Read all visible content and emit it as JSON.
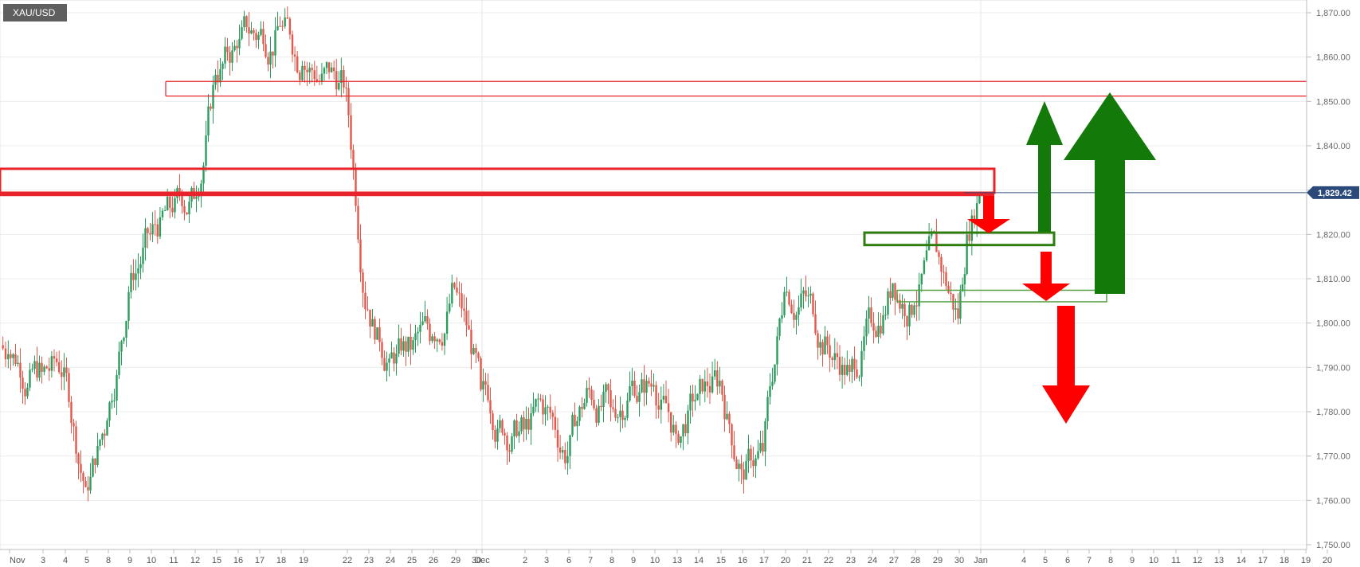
{
  "symbol": "XAU/USD",
  "chart_data": {
    "type": "candlestick",
    "instrument": "XAU/USD",
    "current_price": 1829.42,
    "current_price_label": "1,829.42",
    "y_axis": {
      "min": 1750,
      "max": 1870,
      "ticks": [
        1750,
        1760,
        1770,
        1780,
        1790,
        1800,
        1810,
        1820,
        1830,
        1840,
        1850,
        1860,
        1870
      ],
      "tick_labels": [
        "1,750.00",
        "1,760.00",
        "1,770.00",
        "1,780.00",
        "1,790.00",
        "1,800.00",
        "1,810.00",
        "1,820.00",
        "1,830.00",
        "1,840.00",
        "1,850.00",
        "1,860.00",
        "1,870.00"
      ]
    },
    "x_axis": {
      "tick_labels": [
        "Nov",
        "3",
        "4",
        "5",
        "8",
        "9",
        "10",
        "11",
        "12",
        "15",
        "16",
        "17",
        "18",
        "19",
        "22",
        "23",
        "24",
        "25",
        "26",
        "29",
        "30",
        "Dec",
        "2",
        "3",
        "6",
        "7",
        "8",
        "9",
        "10",
        "13",
        "14",
        "15",
        "16",
        "17",
        "20",
        "21",
        "22",
        "23",
        "24",
        "27",
        "28",
        "29",
        "30",
        "Jan",
        "4",
        "5",
        "6",
        "7",
        "8",
        "9",
        "10",
        "11",
        "12",
        "13",
        "14",
        "17",
        "18",
        "19",
        "20"
      ]
    },
    "day_closes": [
      1793,
      1789,
      1790,
      1763,
      1778,
      1807,
      1820,
      1825,
      1828,
      1856,
      1862,
      1865,
      1867,
      1858,
      1853,
      1803,
      1792,
      1794,
      1797,
      1808,
      1785,
      1776,
      1781,
      1770,
      1785,
      1781,
      1787,
      1786,
      1775,
      1784,
      1787,
      1767,
      1771,
      1807,
      1806,
      1795,
      1789,
      1800,
      1809,
      1804,
      1816,
      1801,
      1820,
      1829.42
    ],
    "levels": [
      {
        "kind": "resistance-line",
        "price": 1854.5
      },
      {
        "kind": "resistance-line",
        "price": 1851.2
      },
      {
        "kind": "resistance-zone",
        "low": 1829.4,
        "high": 1834.8
      },
      {
        "kind": "resistance-line",
        "price": 1828.9
      },
      {
        "kind": "support-zone",
        "low": 1817.6,
        "high": 1820.4
      },
      {
        "kind": "support-zone",
        "low": 1804.8,
        "high": 1807.4
      }
    ],
    "annotations": [
      {
        "kind": "arrow-down",
        "color": "#ff0000"
      },
      {
        "kind": "arrow-up",
        "color": "#137a0a"
      },
      {
        "kind": "arrow-down",
        "color": "#ff0000"
      },
      {
        "kind": "arrow-up",
        "color": "#137a0a"
      },
      {
        "kind": "arrow-down",
        "color": "#ff0000"
      }
    ],
    "grid": true,
    "colors": {
      "up": "#2a9d5c",
      "down": "#e4574b",
      "level": "#e8232a",
      "support": "#2e7d0f",
      "price_tag": "#2b4a7a"
    }
  }
}
